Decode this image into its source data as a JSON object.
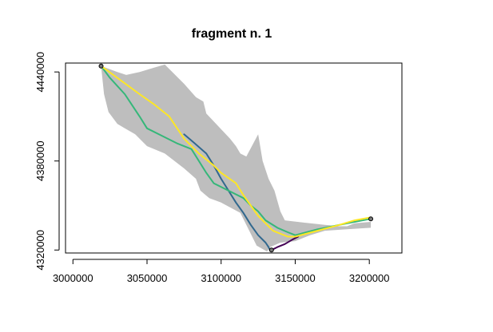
{
  "chart_data": {
    "type": "line",
    "title": "fragment n. 1",
    "xlabel": "",
    "ylabel": "",
    "xlim": [
      2995000,
      3222000
    ],
    "ylim": [
      4318000,
      4446000
    ],
    "x_ticks": [
      3000000,
      3050000,
      3100000,
      3150000,
      3200000
    ],
    "x_tick_labels": [
      "3000000",
      "3050000",
      "3100000",
      "3150000",
      "3200000"
    ],
    "y_ticks": [
      4320000,
      4380000,
      4440000
    ],
    "y_tick_labels": [
      "4320000",
      "4380000",
      "4440000"
    ],
    "grid": false,
    "legend": "none",
    "colors": {
      "region": "#bebebe",
      "series": [
        "#440154",
        "#31688E",
        "#35B779",
        "#FDE725"
      ],
      "endpoint": "#000000"
    },
    "region": {
      "name": "",
      "x": [
        3019000,
        3030000,
        3036000,
        3045000,
        3055000,
        3062000,
        3075000,
        3083000,
        3088000,
        3090000,
        3106000,
        3110000,
        3113000,
        3117000,
        3125000,
        3128000,
        3132000,
        3136000,
        3140000,
        3143000,
        3160000,
        3170000,
        3180000,
        3185000,
        3190000,
        3201000,
        3201000,
        3185000,
        3170000,
        3160000,
        3150000,
        3140000,
        3133000,
        3131000,
        3124000,
        3118000,
        3113000,
        3100000,
        3092000,
        3086000,
        3083000,
        3075000,
        3062000,
        3050000,
        3042000,
        3035000,
        3030000,
        3024000,
        3021000,
        3019000
      ],
      "y": [
        4444000,
        4440000,
        4438000,
        4440000,
        4443000,
        4445000,
        4432000,
        4423000,
        4420000,
        4412000,
        4395000,
        4390000,
        4385000,
        4383000,
        4398000,
        4380000,
        4368000,
        4360000,
        4346000,
        4340000,
        4338000,
        4337000,
        4336000,
        4336000,
        4338000,
        4339000,
        4335000,
        4334000,
        4333000,
        4330000,
        4326000,
        4325000,
        4322000,
        4319000,
        4323000,
        4335000,
        4345000,
        4352000,
        4355000,
        4360000,
        4368000,
        4375000,
        4385000,
        4390000,
        4398000,
        4402000,
        4405000,
        4413000,
        4425000,
        4444000
      ]
    },
    "series": [
      {
        "name": "",
        "x": [
          3134000,
          3138000,
          3143000,
          3148000,
          3152000
        ],
        "y": [
          4320000,
          4322000,
          4324000,
          4327000,
          4329000
        ]
      },
      {
        "name": "",
        "x": [
          3075000,
          3082000,
          3090000,
          3095000,
          3100000,
          3105000,
          3110000,
          3115000,
          3120000,
          3125000,
          3130000,
          3132000,
          3133000
        ],
        "y": [
          4398000,
          4392000,
          4385000,
          4377000,
          4368000,
          4360000,
          4352000,
          4345000,
          4337000,
          4330000,
          4325000,
          4322000,
          4320000
        ]
      },
      {
        "name": "",
        "x": [
          3019000,
          3025000,
          3035000,
          3045000,
          3050000,
          3060000,
          3070000,
          3080000,
          3085000,
          3090000,
          3095000,
          3105000,
          3115000,
          3120000,
          3125000,
          3130000,
          3138000,
          3145000,
          3150000,
          3165000,
          3180000,
          3190000,
          3201000
        ],
        "y": [
          4444000,
          4436000,
          4425000,
          4410000,
          4402000,
          4397000,
          4392000,
          4388000,
          4380000,
          4372000,
          4365000,
          4360000,
          4355000,
          4350000,
          4346000,
          4340000,
          4335000,
          4332000,
          4330000,
          4334000,
          4337000,
          4339000,
          4341000
        ]
      },
      {
        "name": "",
        "x": [
          3019000,
          3030000,
          3045000,
          3055000,
          3065000,
          3075000,
          3085000,
          3095000,
          3100000,
          3110000,
          3115000,
          3125000,
          3135000,
          3145000,
          3150000,
          3165000,
          3180000,
          3190000,
          3201000
        ],
        "y": [
          4444000,
          4436000,
          4425000,
          4418000,
          4410000,
          4395000,
          4385000,
          4377000,
          4372000,
          4365000,
          4357000,
          4343000,
          4333000,
          4329000,
          4329000,
          4333000,
          4337000,
          4340000,
          4342000
        ]
      }
    ],
    "endpoints": [
      {
        "x": 3019000,
        "y": 4444000
      },
      {
        "x": 3134000,
        "y": 4320000
      },
      {
        "x": 3201000,
        "y": 4341000
      }
    ]
  }
}
